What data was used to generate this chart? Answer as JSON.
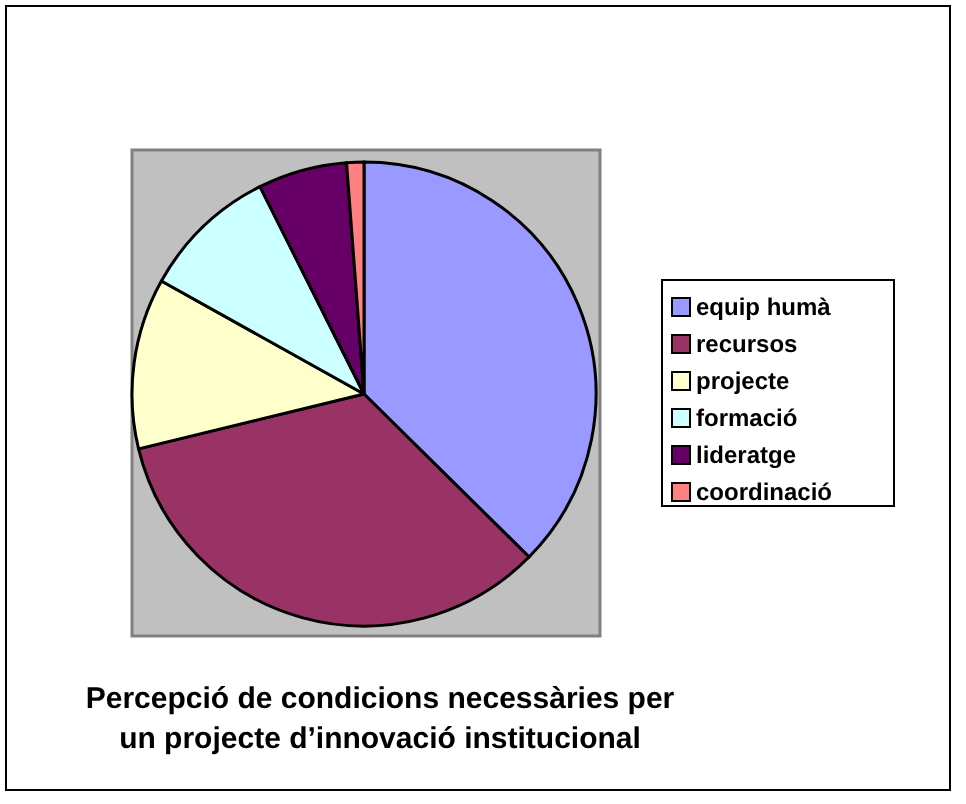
{
  "chart_data": {
    "type": "pie",
    "title": "Percepció de condicions necessàries per un projecte d’innovació institucional",
    "categories": [
      "equip humà",
      "recursos",
      "projecte",
      "formació",
      "lideratge",
      "coordinació"
    ],
    "values": [
      37.4,
      33.8,
      11.9,
      9.5,
      6.2,
      1.2
    ],
    "colors": [
      "#9999ff",
      "#993366",
      "#ffffcc",
      "#ccffff",
      "#660066",
      "#ff8080"
    ],
    "legend": "right"
  }
}
